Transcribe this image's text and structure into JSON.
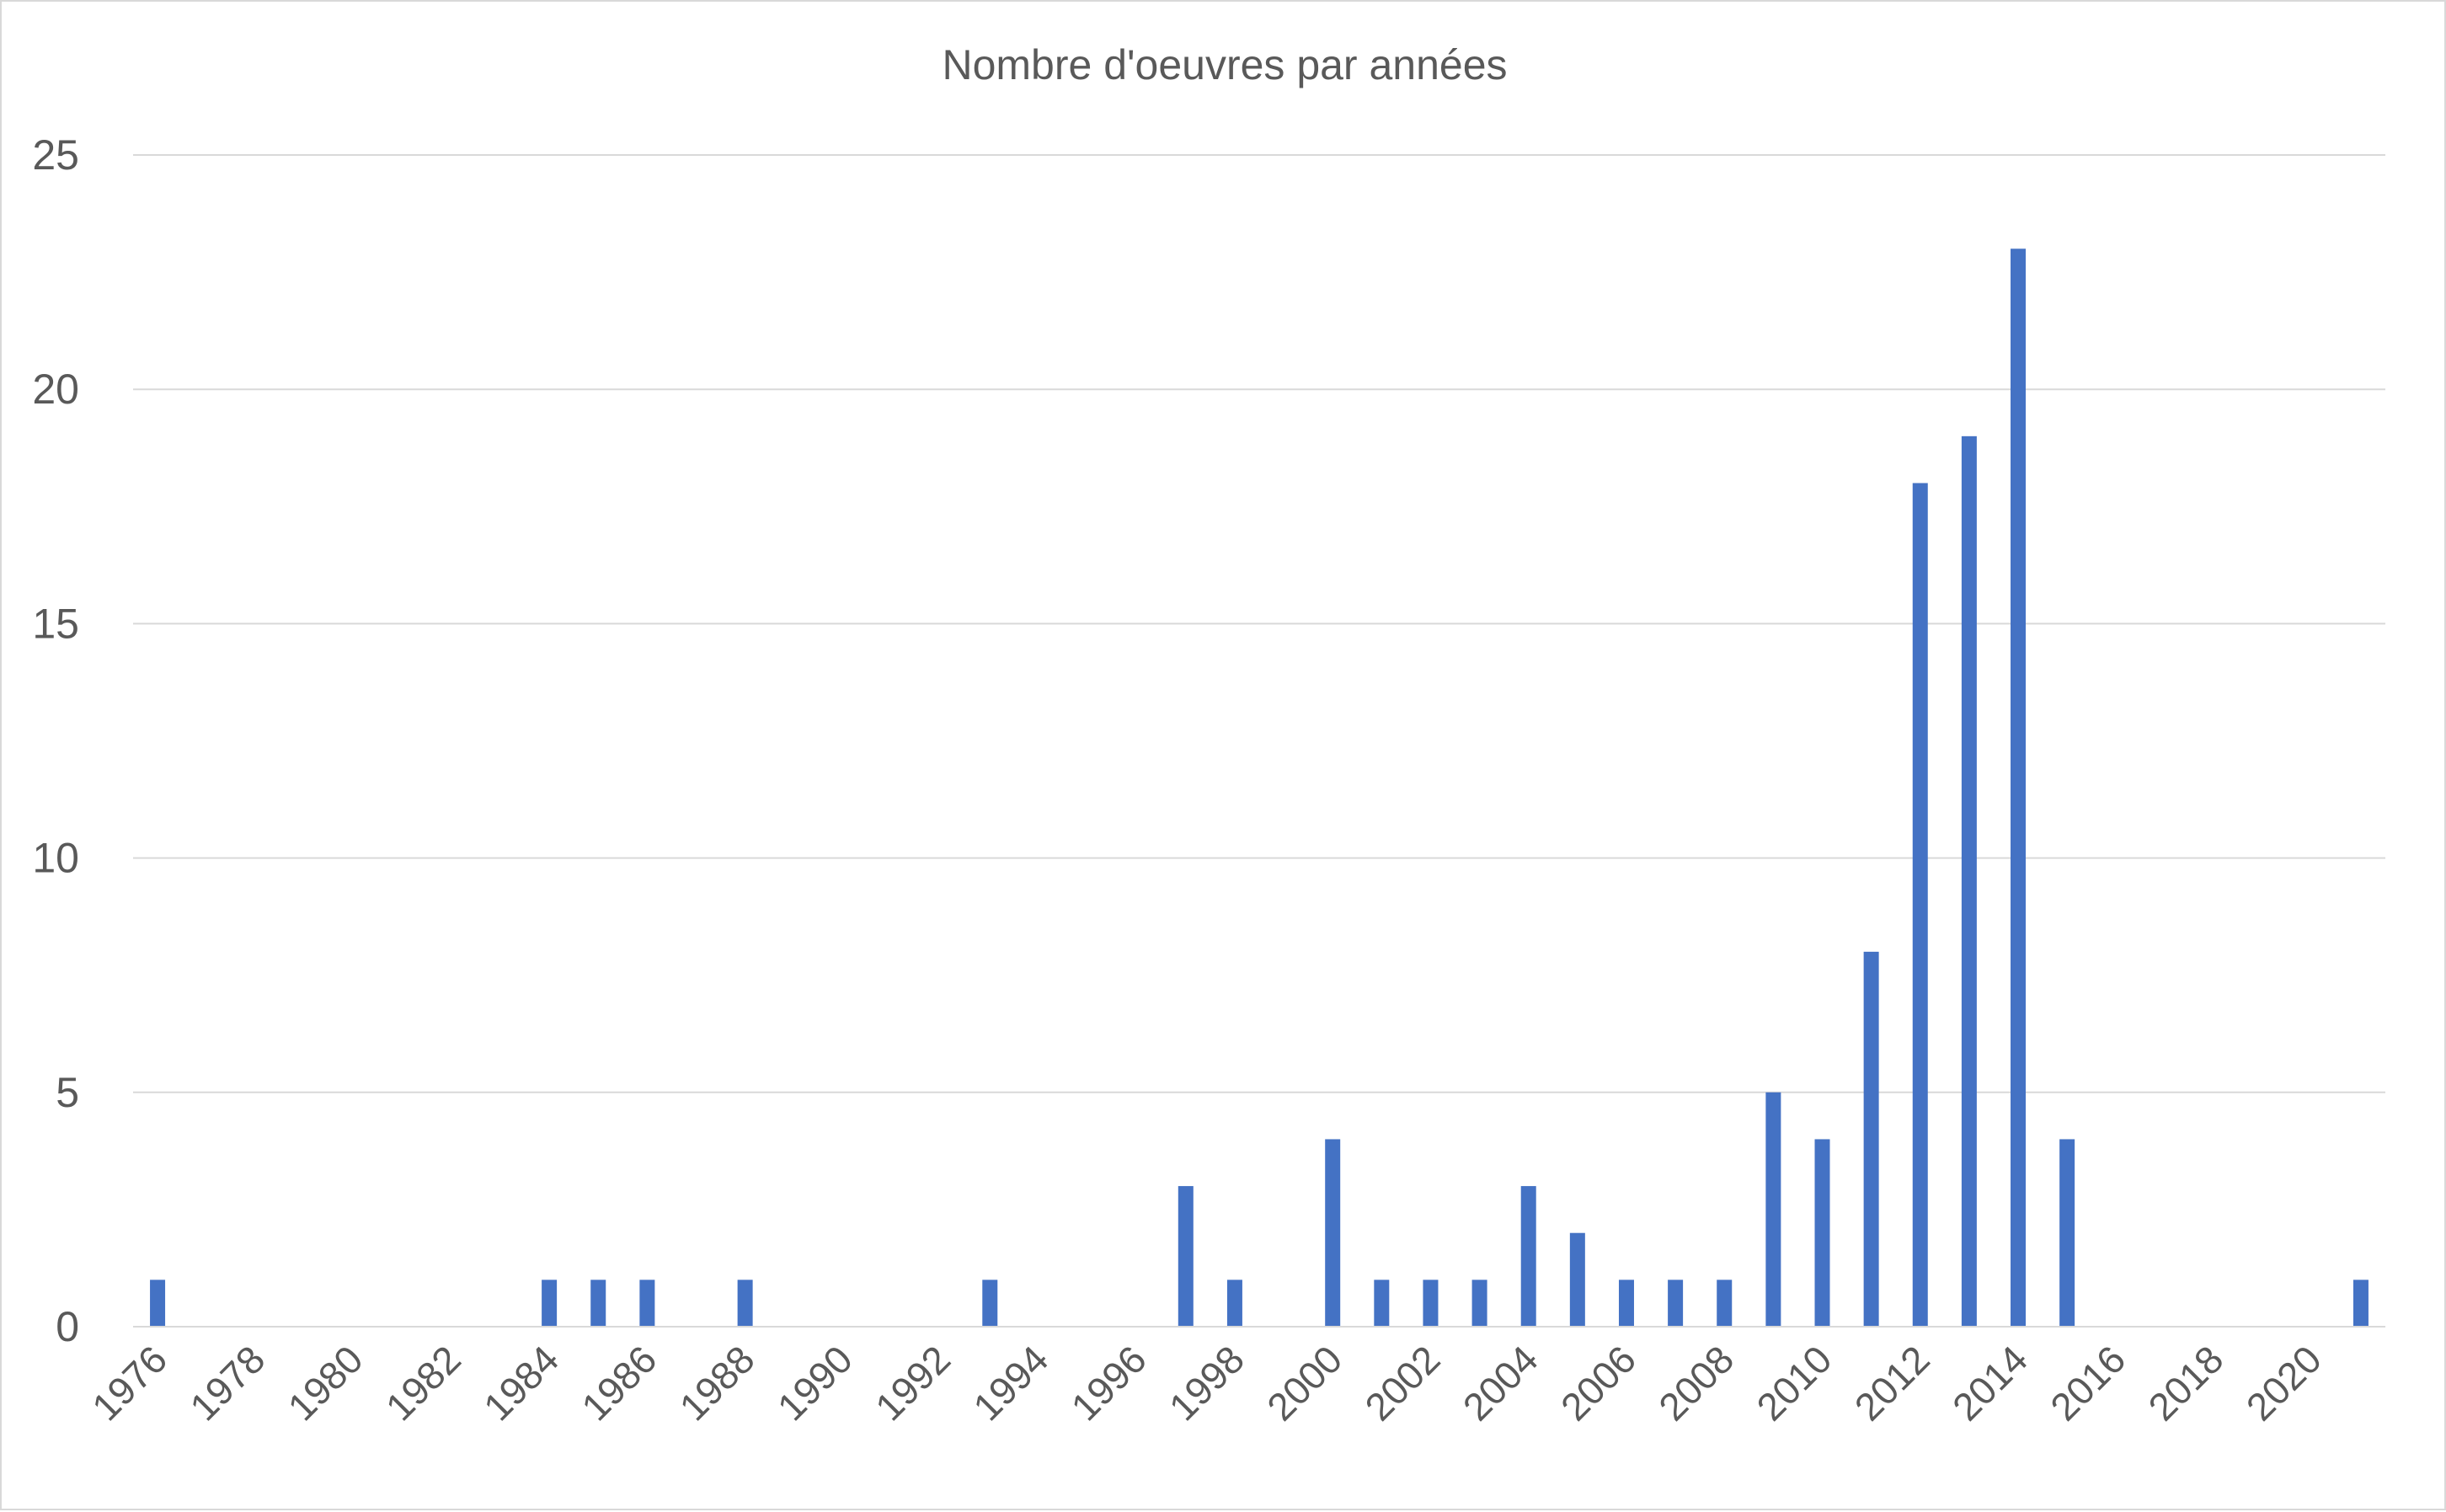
{
  "chart_data": {
    "type": "bar",
    "title": "Nombre d'oeuvres par années",
    "xlabel": "",
    "ylabel": "",
    "ylim": [
      0,
      25
    ],
    "yticks": [
      0,
      5,
      10,
      15,
      20,
      25
    ],
    "grid": true,
    "legend": "none",
    "bar_color": "#4472C4",
    "categories": [
      1976,
      1977,
      1978,
      1979,
      1980,
      1981,
      1982,
      1983,
      1984,
      1985,
      1986,
      1987,
      1988,
      1989,
      1990,
      1991,
      1992,
      1993,
      1994,
      1995,
      1996,
      1997,
      1998,
      1999,
      2000,
      2001,
      2002,
      2003,
      2004,
      2005,
      2006,
      2007,
      2008,
      2009,
      2010,
      2011,
      2012,
      2013,
      2014,
      2015,
      2016,
      2017,
      2018,
      2019,
      2020,
      2021
    ],
    "values": [
      1,
      0,
      0,
      0,
      0,
      0,
      0,
      0,
      1,
      1,
      1,
      0,
      1,
      0,
      0,
      0,
      0,
      1,
      0,
      0,
      0,
      3,
      1,
      0,
      4,
      1,
      1,
      1,
      3,
      2,
      1,
      1,
      1,
      5,
      4,
      8,
      18,
      19,
      23,
      4,
      0,
      0,
      0,
      0,
      0,
      1
    ],
    "tick_labels": [
      "1976",
      "1978",
      "1980",
      "1982",
      "1984",
      "1986",
      "1988",
      "1990",
      "1992",
      "1994",
      "1996",
      "1998",
      "2000",
      "2002",
      "2004",
      "2006",
      "2008",
      "2010",
      "2012",
      "2014",
      "2016",
      "2018",
      "2020"
    ]
  }
}
